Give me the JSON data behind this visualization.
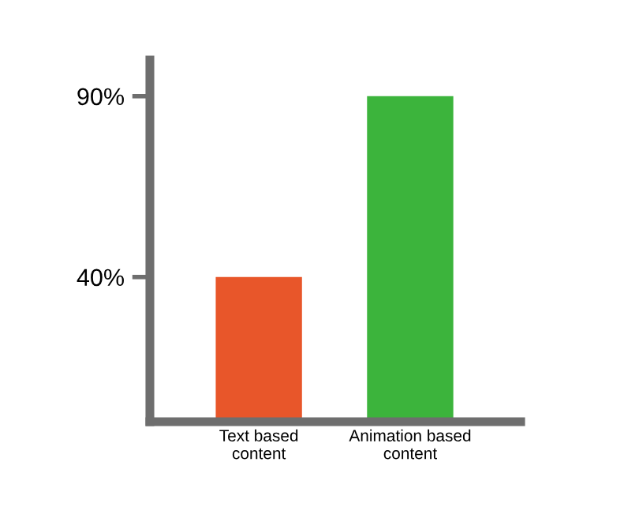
{
  "chart_data": {
    "type": "bar",
    "categories": [
      "Text based\ncontent",
      "Animation based\ncontent"
    ],
    "values": [
      40,
      90
    ],
    "colors": [
      "#e8562a",
      "#3cb43c"
    ],
    "ylim": [
      0,
      100
    ],
    "yticks": [
      {
        "value": 40,
        "label": "40%"
      },
      {
        "value": 90,
        "label": "90%"
      }
    ],
    "grid": false,
    "legend": false
  }
}
